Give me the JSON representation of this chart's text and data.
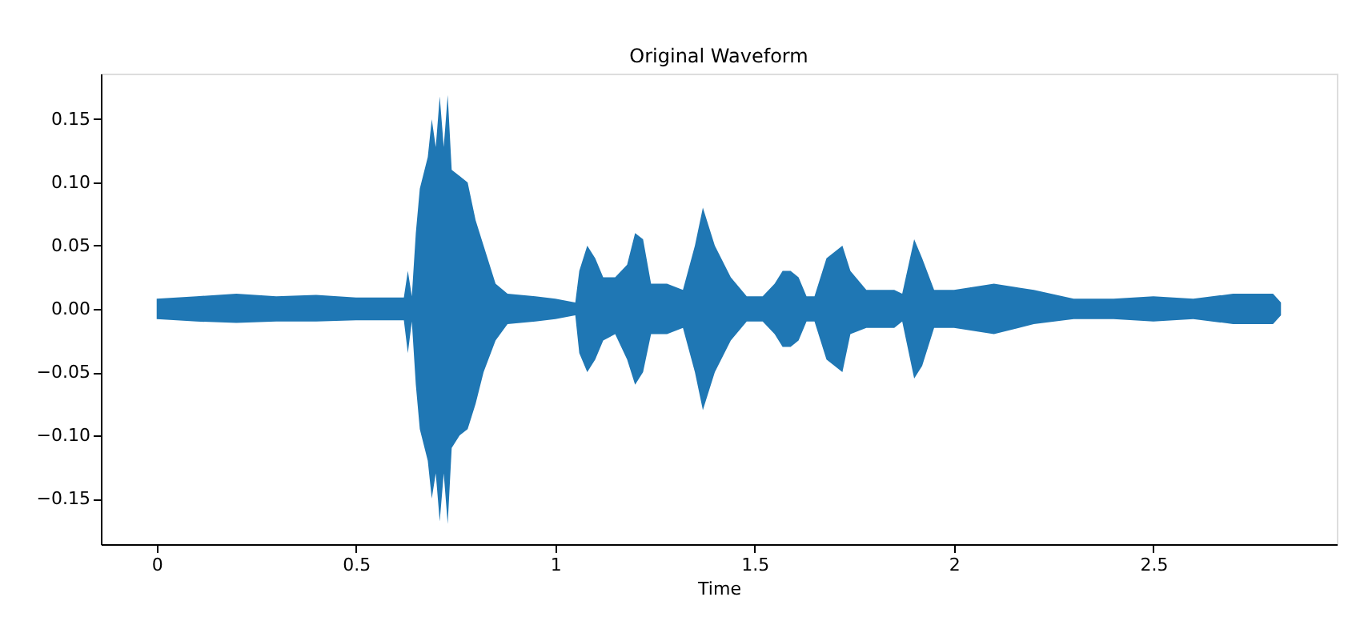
{
  "chart_data": {
    "type": "area",
    "title": "Original Waveform",
    "xlabel": "Time",
    "x": [
      0.0,
      0.1,
      0.2,
      0.3,
      0.4,
      0.5,
      0.62,
      0.63,
      0.64,
      0.65,
      0.66,
      0.68,
      0.69,
      0.7,
      0.71,
      0.72,
      0.73,
      0.74,
      0.76,
      0.78,
      0.8,
      0.82,
      0.85,
      0.88,
      0.95,
      1.0,
      1.05,
      1.06,
      1.08,
      1.1,
      1.12,
      1.15,
      1.18,
      1.2,
      1.22,
      1.24,
      1.28,
      1.32,
      1.35,
      1.37,
      1.4,
      1.44,
      1.48,
      1.52,
      1.55,
      1.57,
      1.59,
      1.61,
      1.63,
      1.65,
      1.68,
      1.72,
      1.74,
      1.78,
      1.85,
      1.87,
      1.9,
      1.92,
      1.95,
      2.0,
      2.1,
      2.2,
      2.3,
      2.4,
      2.5,
      2.6,
      2.7,
      2.8,
      2.82
    ],
    "series": [
      {
        "color": "#1f77b4",
        "values": [
          0.008,
          0.01,
          0.012,
          0.01,
          0.011,
          0.009,
          0.009,
          0.03,
          0.01,
          0.06,
          0.095,
          0.12,
          0.15,
          0.128,
          0.168,
          0.128,
          0.169,
          0.11,
          0.105,
          0.1,
          0.07,
          0.05,
          0.02,
          0.012,
          0.01,
          0.008,
          0.005,
          0.03,
          0.05,
          0.04,
          0.025,
          0.025,
          0.035,
          0.06,
          0.055,
          0.02,
          0.02,
          0.015,
          0.05,
          0.08,
          0.05,
          0.025,
          0.01,
          0.01,
          0.02,
          0.03,
          0.03,
          0.025,
          0.01,
          0.01,
          0.04,
          0.05,
          0.03,
          0.015,
          0.015,
          0.012,
          0.055,
          0.04,
          0.015,
          0.015,
          0.02,
          0.015,
          0.008,
          0.008,
          0.01,
          0.008,
          0.012,
          0.012,
          0.005
        ]
      },
      {
        "color": "#1f77b4",
        "values": [
          -0.008,
          -0.01,
          -0.011,
          -0.01,
          -0.01,
          -0.009,
          -0.009,
          -0.035,
          -0.01,
          -0.06,
          -0.095,
          -0.12,
          -0.15,
          -0.13,
          -0.168,
          -0.13,
          -0.17,
          -0.11,
          -0.1,
          -0.095,
          -0.075,
          -0.05,
          -0.025,
          -0.012,
          -0.01,
          -0.008,
          -0.005,
          -0.035,
          -0.05,
          -0.04,
          -0.025,
          -0.02,
          -0.04,
          -0.06,
          -0.05,
          -0.02,
          -0.02,
          -0.015,
          -0.05,
          -0.08,
          -0.05,
          -0.025,
          -0.01,
          -0.01,
          -0.02,
          -0.03,
          -0.03,
          -0.025,
          -0.01,
          -0.01,
          -0.04,
          -0.05,
          -0.02,
          -0.015,
          -0.015,
          -0.01,
          -0.055,
          -0.045,
          -0.015,
          -0.015,
          -0.02,
          -0.012,
          -0.008,
          -0.008,
          -0.01,
          -0.008,
          -0.012,
          -0.012,
          -0.005
        ]
      }
    ],
    "xlim": [
      -0.14,
      2.96
    ],
    "xticks": [
      0,
      0.5,
      1,
      1.5,
      2,
      2.5
    ],
    "ylim": [
      -0.186,
      0.186
    ],
    "yticks": [
      {
        "value": -0.15,
        "label": "−0.15"
      },
      {
        "value": -0.1,
        "label": "−0.10"
      },
      {
        "value": -0.05,
        "label": "−0.05"
      },
      {
        "value": 0,
        "label": "0.00"
      },
      {
        "value": 0.05,
        "label": "0.05"
      },
      {
        "value": 0.1,
        "label": "0.10"
      },
      {
        "value": 0.15,
        "label": "0.15"
      }
    ],
    "grid": false
  }
}
